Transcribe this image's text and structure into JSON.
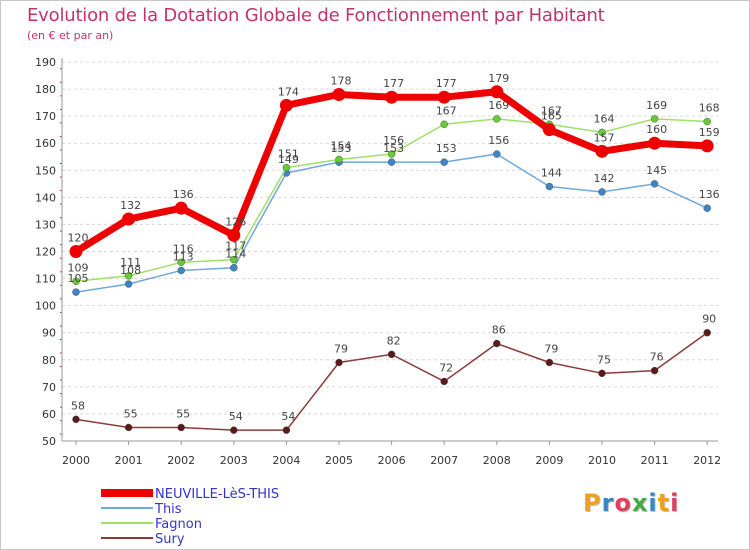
{
  "chart_data": {
    "type": "line",
    "title": "Evolution de la Dotation Globale de Fonctionnement par Habitant",
    "subtitle": "(en € et par an)",
    "x": [
      2000,
      2001,
      2002,
      2003,
      2004,
      2005,
      2006,
      2007,
      2008,
      2009,
      2010,
      2011,
      2012
    ],
    "xlabels": [
      "2000",
      "2001",
      "2002",
      "2003",
      "2004",
      "2005",
      "2006",
      "2007",
      "2008",
      "2009",
      "2010",
      "2011",
      "2012"
    ],
    "ylim": [
      50,
      190
    ],
    "yticks": [
      50,
      60,
      70,
      80,
      90,
      100,
      110,
      120,
      130,
      140,
      150,
      160,
      170,
      180,
      190
    ],
    "grid": "horizontal dashed",
    "series": [
      {
        "name": "NEUVILLE-LèS-THIS",
        "color": "#ee0000",
        "marker": "#ee0000",
        "values": [
          120,
          132,
          136,
          126,
          174,
          178,
          177,
          177,
          179,
          165,
          157,
          160,
          159
        ],
        "labels": [
          "120",
          "132",
          "136",
          "126",
          "174",
          "178",
          "177",
          "177",
          "179",
          "165",
          "157",
          "160",
          "159"
        ]
      },
      {
        "name": "This",
        "color": "#6fa8dc",
        "marker": "#3d85c6",
        "values": [
          105,
          108,
          113,
          114,
          149,
          153,
          153,
          153,
          156,
          144,
          142,
          145,
          136
        ],
        "labels": [
          "105",
          "108",
          "113",
          "114",
          "149",
          "153",
          "153",
          "153",
          "156",
          "144",
          "142",
          "145",
          "136"
        ]
      },
      {
        "name": "Fagnon",
        "color": "#9fe06a",
        "marker": "#66cc33",
        "values": [
          109,
          111,
          116,
          117,
          151,
          154,
          156,
          167,
          169,
          167,
          164,
          169,
          168
        ],
        "labels": [
          "109",
          "111",
          "116",
          "117",
          "151",
          "154",
          "156",
          "167",
          "169",
          "167",
          "164",
          "169",
          "168"
        ]
      },
      {
        "name": "Sury",
        "color": "#8b3a3a",
        "marker": "#5a1a1a",
        "values": [
          58,
          55,
          55,
          54,
          54,
          79,
          82,
          72,
          86,
          79,
          75,
          76,
          90
        ],
        "labels": [
          "58",
          "55",
          "55",
          "54",
          "54",
          "79",
          "82",
          "72",
          "86",
          "79",
          "75",
          "76",
          "90"
        ]
      }
    ]
  },
  "legend": {
    "items": [
      {
        "label": "NEUVILLE-LèS-THIS",
        "color": "#ee0000",
        "text_color": "#3333cc"
      },
      {
        "label": "This",
        "color": "#6fa8dc",
        "text_color": "#3333cc"
      },
      {
        "label": "Fagnon",
        "color": "#9fe06a",
        "text_color": "#3333cc"
      },
      {
        "label": "Sury",
        "color": "#8b3a3a",
        "text_color": "#3333cc"
      }
    ]
  },
  "logo": {
    "text": "Proxiti",
    "colors": [
      "#f0a020",
      "#3388cc",
      "#e04060",
      "#44aa44",
      "#3388cc",
      "#f0a020",
      "#e04060"
    ]
  }
}
